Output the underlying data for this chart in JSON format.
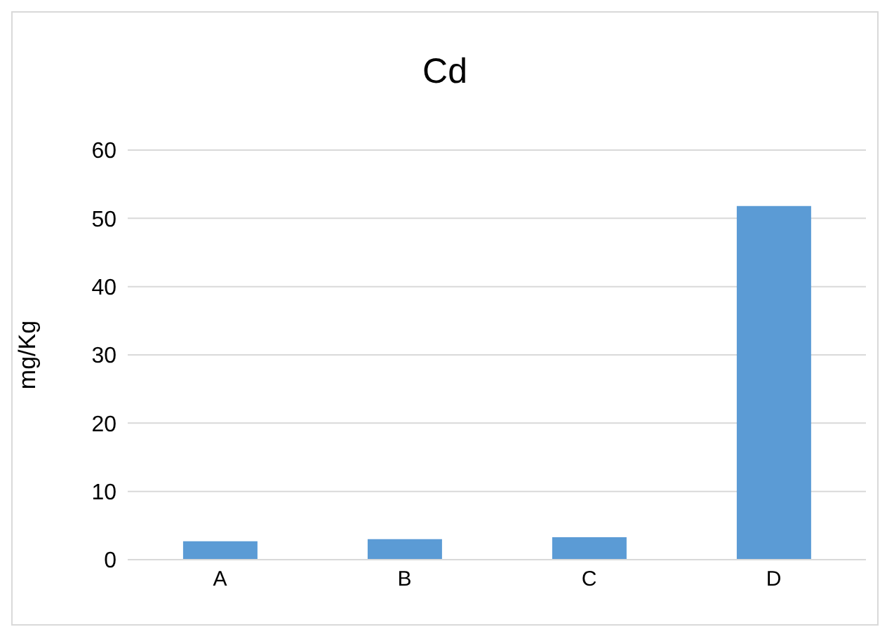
{
  "chart_data": {
    "type": "bar",
    "title": "Cd",
    "ylabel": "mg/Kg",
    "categories": [
      "A",
      "B",
      "C",
      "D"
    ],
    "values": [
      2.7,
      3.0,
      3.3,
      51.8
    ],
    "color": "#5b9bd5",
    "ylim": [
      0,
      60
    ],
    "yticks": [
      0,
      10,
      20,
      30,
      40,
      50,
      60
    ],
    "grid": "y"
  }
}
